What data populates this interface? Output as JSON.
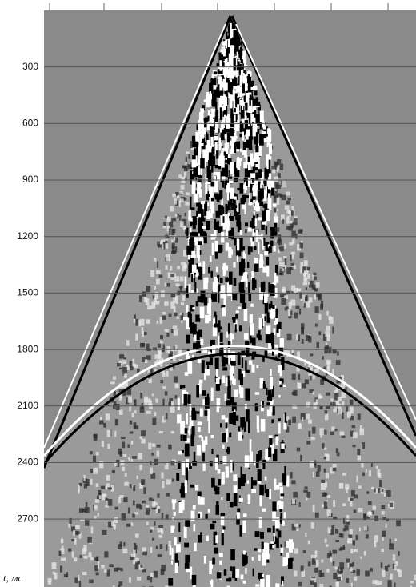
{
  "chart_data": {
    "type": "image",
    "y_label": "t, мс",
    "ylim": [
      0,
      3060
    ],
    "yticks": [
      300,
      600,
      900,
      1200,
      1500,
      1800,
      2100,
      2400,
      2700
    ],
    "grid": true
  }
}
